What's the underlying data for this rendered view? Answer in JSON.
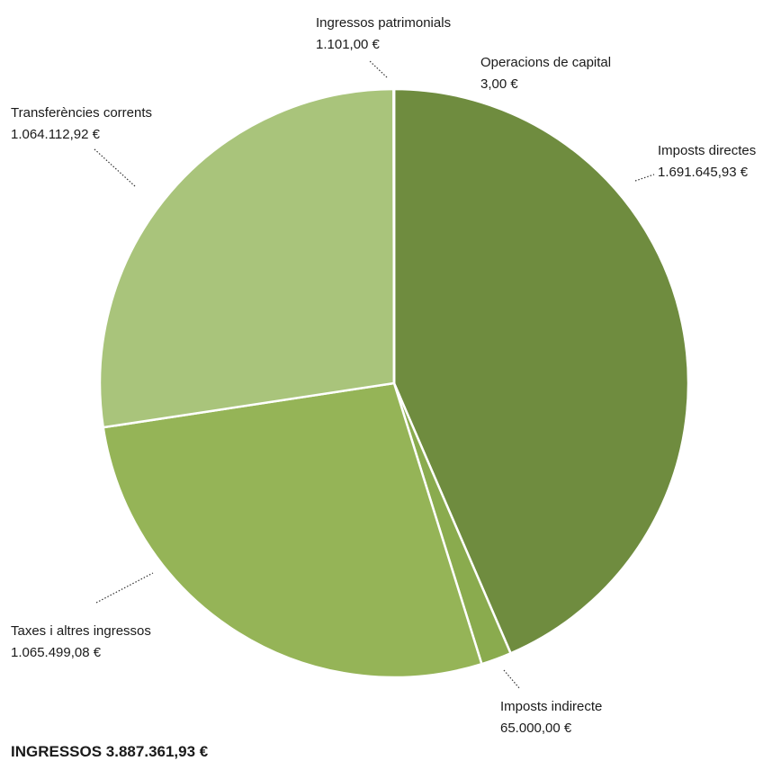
{
  "chart_data": {
    "type": "pie",
    "currency": "€",
    "slices": [
      {
        "label": "Imposts directes",
        "value_text": "1.691.645,93 €",
        "value": 1691645.93,
        "color": "#6f8c3f"
      },
      {
        "label": "Imposts indirecte",
        "value_text": "65.000,00 €",
        "value": 65000.0,
        "color": "#8aab4e"
      },
      {
        "label": "Taxes i altres ingressos",
        "value_text": "1.065.499,08 €",
        "value": 1065499.08,
        "color": "#95b457"
      },
      {
        "label": "Transferències corrents",
        "value_text": "1.064.112,92 €",
        "value": 1064112.92,
        "color": "#a9c47b"
      },
      {
        "label": "Ingressos patrimonials",
        "value_text": "1.101,00 €",
        "value": 1101.0,
        "color": "#a9c47b"
      },
      {
        "label": "Operacions de capital",
        "value_text": "3,00 €",
        "value": 3.0,
        "color": "#6f8c3f"
      }
    ]
  },
  "total_label": "INGRESSOS 3.887.361,93 €"
}
